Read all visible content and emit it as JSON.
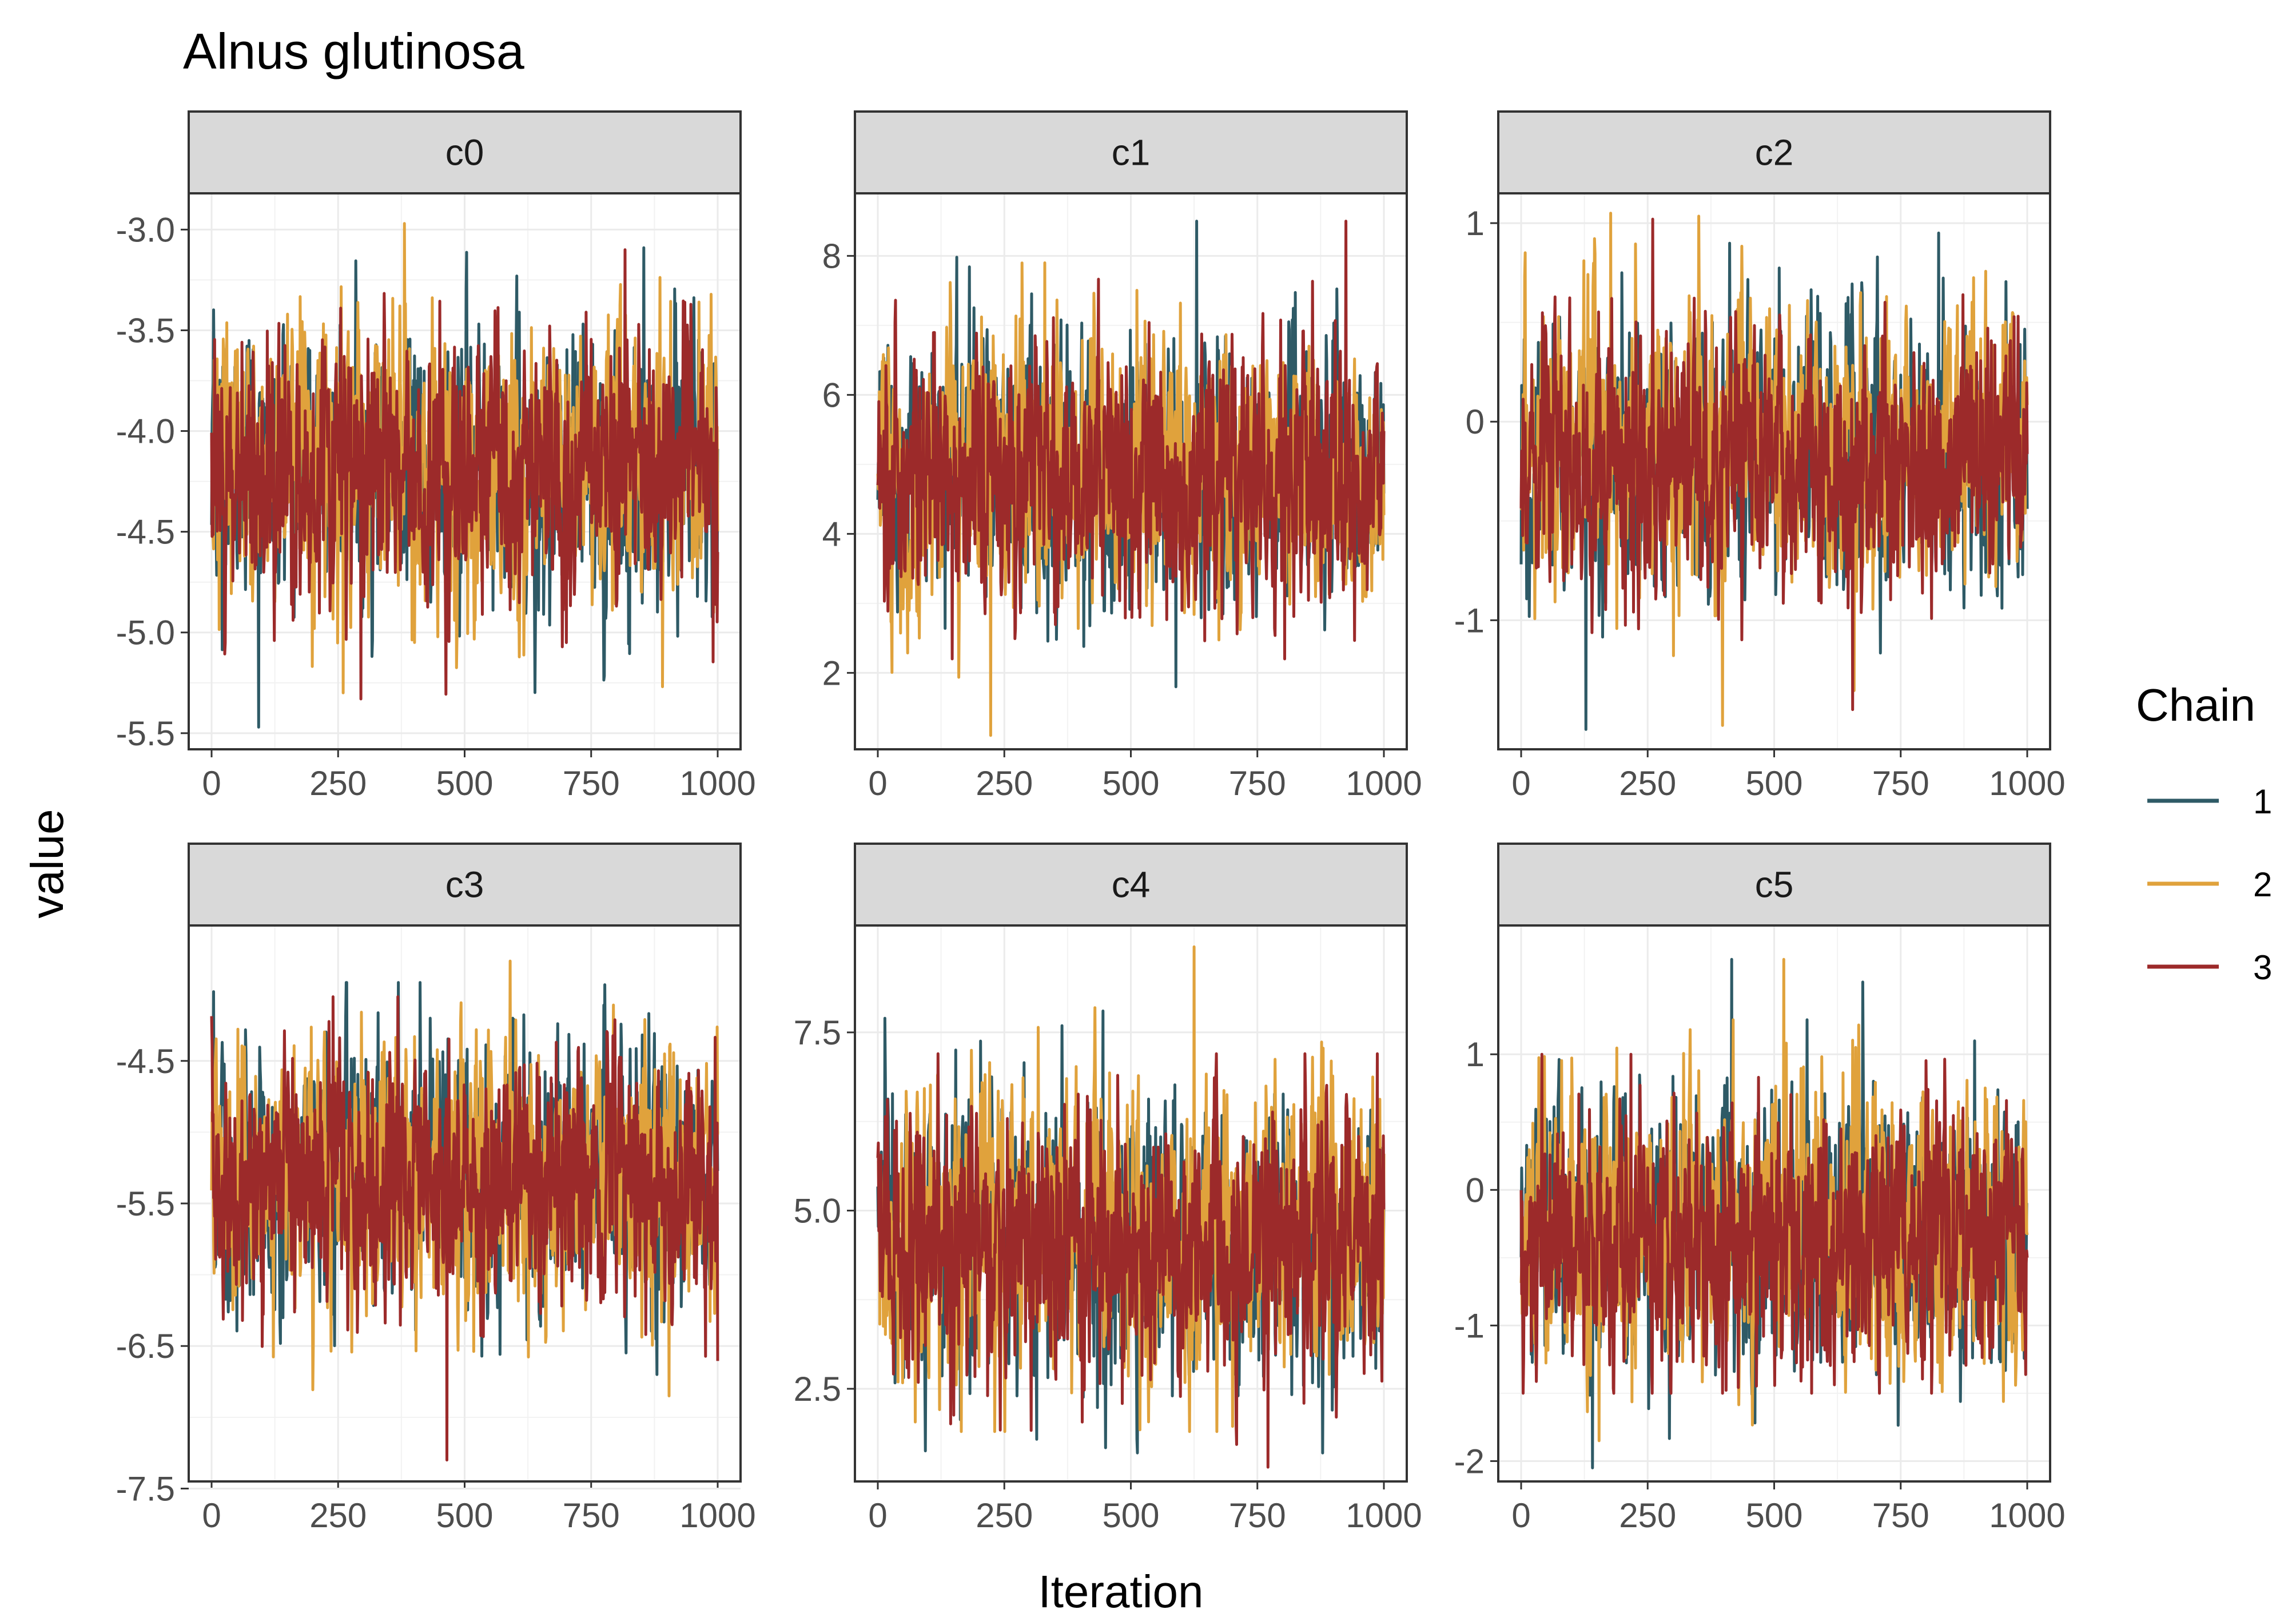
{
  "chart_data": {
    "type": "line",
    "title": "Alnus glutinosa",
    "xlabel": "Iteration",
    "ylabel": "value",
    "legend": {
      "title": "Chain",
      "position": "right",
      "entries": [
        {
          "label": "1",
          "color": "#2e5a66"
        },
        {
          "label": "2",
          "color": "#e0a23c"
        },
        {
          "label": "3",
          "color": "#9c2a2a"
        }
      ]
    },
    "xlim": [
      0,
      1000
    ],
    "xticks": [
      0,
      250,
      500,
      750,
      1000
    ],
    "xtick_labels": [
      "0",
      "250",
      "500",
      "750",
      "1000"
    ],
    "grid": true,
    "panels": [
      {
        "name": "c0",
        "ylim": [
          -5.58,
          -2.82
        ],
        "yticks": [
          -5.5,
          -5.0,
          -4.5,
          -4.0,
          -3.5,
          -3.0
        ],
        "ytick_labels": [
          "-5.5",
          "-5.0",
          "-4.5",
          "-4.0",
          "-3.5",
          "-3.0"
        ],
        "series": [
          {
            "chain": "1",
            "mean": -4.2,
            "sd": 0.33,
            "min": -5.47,
            "max": -3.09
          },
          {
            "chain": "2",
            "mean": -4.15,
            "sd": 0.34,
            "min": -5.3,
            "max": -2.97
          },
          {
            "chain": "3",
            "mean": -4.2,
            "sd": 0.32,
            "min": -5.33,
            "max": -3.1
          }
        ]
      },
      {
        "name": "c1",
        "ylim": [
          0.9,
          8.9
        ],
        "yticks": [
          2,
          4,
          6,
          8
        ],
        "ytick_labels": [
          "2",
          "4",
          "6",
          "8"
        ],
        "series": [
          {
            "chain": "1",
            "mean": 4.9,
            "sd": 0.95,
            "min": 1.8,
            "max": 8.5
          },
          {
            "chain": "2",
            "mean": 4.9,
            "sd": 0.95,
            "min": 1.1,
            "max": 7.9
          },
          {
            "chain": "3",
            "mean": 4.8,
            "sd": 0.9,
            "min": 2.2,
            "max": 8.5
          }
        ]
      },
      {
        "name": "c2",
        "ylim": [
          -1.65,
          1.15
        ],
        "yticks": [
          -1,
          0,
          1
        ],
        "ytick_labels": [
          "-1",
          "0",
          "1"
        ],
        "series": [
          {
            "chain": "1",
            "mean": -0.18,
            "sd": 0.33,
            "min": -1.55,
            "max": 0.95
          },
          {
            "chain": "2",
            "mean": -0.12,
            "sd": 0.34,
            "min": -1.53,
            "max": 1.05
          },
          {
            "chain": "3",
            "mean": -0.2,
            "sd": 0.32,
            "min": -1.45,
            "max": 1.02
          }
        ]
      },
      {
        "name": "c3",
        "ylim": [
          -7.45,
          -3.55
        ],
        "yticks": [
          -7.5,
          -6.5,
          -5.5,
          -4.5
        ],
        "ytick_labels": [
          "-7.5",
          "-6.5",
          "-5.5",
          "-4.5"
        ],
        "series": [
          {
            "chain": "1",
            "mean": -5.3,
            "sd": 0.45,
            "min": -6.7,
            "max": -3.95
          },
          {
            "chain": "2",
            "mean": -5.3,
            "sd": 0.45,
            "min": -6.85,
            "max": -3.8
          },
          {
            "chain": "3",
            "mean": -5.35,
            "sd": 0.42,
            "min": -7.3,
            "max": -4.05
          }
        ]
      },
      {
        "name": "c4",
        "ylim": [
          1.2,
          9.0
        ],
        "yticks": [
          2.5,
          5.0,
          7.5
        ],
        "ytick_labels": [
          "2.5",
          "5.0",
          "7.5"
        ],
        "series": [
          {
            "chain": "1",
            "mean": 4.6,
            "sd": 0.95,
            "min": 1.6,
            "max": 7.8
          },
          {
            "chain": "2",
            "mean": 4.7,
            "sd": 0.95,
            "min": 1.9,
            "max": 8.7
          },
          {
            "chain": "3",
            "mean": 4.5,
            "sd": 0.9,
            "min": 1.4,
            "max": 7.2
          }
        ]
      },
      {
        "name": "c5",
        "ylim": [
          -2.15,
          1.95
        ],
        "yticks": [
          -2,
          -1,
          0,
          1
        ],
        "ytick_labels": [
          "-2",
          "-1",
          "0",
          "1"
        ],
        "series": [
          {
            "chain": "1",
            "mean": -0.35,
            "sd": 0.5,
            "min": -2.05,
            "max": 1.7
          },
          {
            "chain": "2",
            "mean": -0.3,
            "sd": 0.5,
            "min": -1.85,
            "max": 1.7
          },
          {
            "chain": "3",
            "mean": -0.4,
            "sd": 0.45,
            "min": -1.5,
            "max": 1.0
          }
        ]
      }
    ]
  }
}
